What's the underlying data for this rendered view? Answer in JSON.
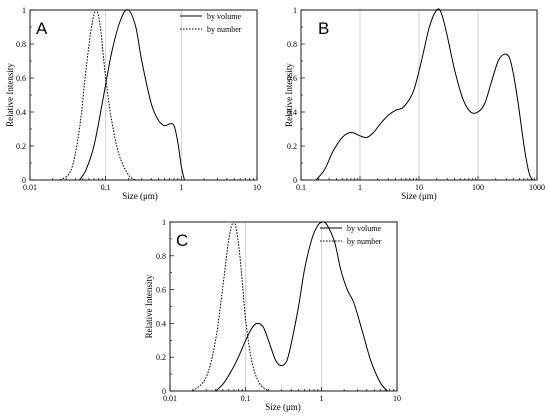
{
  "chart_data": [
    {
      "type": "line",
      "panel_label": "A",
      "xlabel": "Size (μm)",
      "ylabel": "Relative Intensity",
      "xscale": "log",
      "xlim": [
        0.01,
        10
      ],
      "ylim": [
        0,
        1
      ],
      "xticks": [
        {
          "v": 0.01,
          "label": "0.01"
        },
        {
          "v": 0.1,
          "label": "0.1"
        },
        {
          "v": 1,
          "label": "1"
        },
        {
          "v": 10,
          "label": "10"
        }
      ],
      "yticks": [
        {
          "v": 0,
          "label": "0"
        },
        {
          "v": 0.2,
          "label": "0.2"
        },
        {
          "v": 0.4,
          "label": "0.4"
        },
        {
          "v": 0.6,
          "label": "0.6"
        },
        {
          "v": 0.8,
          "label": "0.8"
        },
        {
          "v": 1,
          "label": "1"
        }
      ],
      "gridlines_x": [
        0.1,
        1
      ],
      "legend": "top-right",
      "series": [
        {
          "name": "by volume",
          "style": "solid",
          "color": "#000000",
          "x": [
            0.045,
            0.055,
            0.07,
            0.09,
            0.12,
            0.16,
            0.2,
            0.25,
            0.3,
            0.4,
            0.5,
            0.6,
            0.7,
            0.8,
            0.9,
            1.0,
            1.1
          ],
          "y": [
            0,
            0.06,
            0.2,
            0.45,
            0.75,
            0.95,
            1.0,
            0.9,
            0.7,
            0.45,
            0.35,
            0.32,
            0.33,
            0.32,
            0.22,
            0.08,
            0
          ]
        },
        {
          "name": "by number",
          "style": "dashed",
          "color": "#000000",
          "x": [
            0.025,
            0.035,
            0.045,
            0.055,
            0.065,
            0.075,
            0.085,
            0.1,
            0.12,
            0.15,
            0.2,
            0.25
          ],
          "y": [
            0,
            0.06,
            0.3,
            0.65,
            0.9,
            1.0,
            0.9,
            0.6,
            0.35,
            0.15,
            0.03,
            0
          ]
        }
      ]
    },
    {
      "type": "line",
      "panel_label": "B",
      "xlabel": "Size (μm)",
      "ylabel": "Relative Intensity",
      "xscale": "log",
      "xlim": [
        0.1,
        1000
      ],
      "ylim": [
        0,
        1
      ],
      "xticks": [
        {
          "v": 0.1,
          "label": "0.1"
        },
        {
          "v": 1,
          "label": "1"
        },
        {
          "v": 10,
          "label": "10"
        },
        {
          "v": 100,
          "label": "100"
        },
        {
          "v": 1000,
          "label": "1000"
        }
      ],
      "yticks": [
        {
          "v": 0,
          "label": "0"
        },
        {
          "v": 0.2,
          "label": "0.2"
        },
        {
          "v": 0.4,
          "label": "0.4"
        },
        {
          "v": 0.6,
          "label": "0.6"
        },
        {
          "v": 0.8,
          "label": "0.8"
        },
        {
          "v": 1,
          "label": "1"
        }
      ],
      "gridlines_x": [
        1,
        10,
        100
      ],
      "legend": "none",
      "series": [
        {
          "name": "",
          "style": "solid",
          "color": "#000000",
          "x": [
            0.18,
            0.25,
            0.35,
            0.5,
            0.7,
            1.0,
            1.3,
            1.7,
            2.2,
            3,
            4,
            5.5,
            8,
            11,
            15,
            20,
            24,
            30,
            40,
            55,
            75,
            100,
            130,
            170,
            220,
            280,
            340,
            400,
            480,
            560,
            650,
            750,
            850
          ],
          "y": [
            0,
            0.06,
            0.17,
            0.25,
            0.28,
            0.26,
            0.25,
            0.28,
            0.33,
            0.38,
            0.41,
            0.43,
            0.52,
            0.7,
            0.9,
            1.0,
            0.98,
            0.85,
            0.65,
            0.48,
            0.4,
            0.4,
            0.45,
            0.58,
            0.7,
            0.74,
            0.72,
            0.62,
            0.45,
            0.28,
            0.13,
            0.03,
            0
          ]
        }
      ]
    },
    {
      "type": "line",
      "panel_label": "C",
      "xlabel": "Size (μm)",
      "ylabel": "Relative Intensity",
      "xscale": "log",
      "xlim": [
        0.01,
        10
      ],
      "ylim": [
        0,
        1
      ],
      "xticks": [
        {
          "v": 0.01,
          "label": "0.01"
        },
        {
          "v": 0.1,
          "label": "0.1"
        },
        {
          "v": 1,
          "label": "1"
        },
        {
          "v": 10,
          "label": "10"
        }
      ],
      "yticks": [
        {
          "v": 0,
          "label": "0"
        },
        {
          "v": 0.2,
          "label": "0.2"
        },
        {
          "v": 0.4,
          "label": "0.4"
        },
        {
          "v": 0.6,
          "label": "0.6"
        },
        {
          "v": 0.8,
          "label": "0.8"
        },
        {
          "v": 1,
          "label": "1"
        }
      ],
      "gridlines_x": [
        0.1,
        1
      ],
      "legend": "top-right",
      "series": [
        {
          "name": "by volume",
          "style": "solid",
          "color": "#000000",
          "x": [
            0.04,
            0.05,
            0.065,
            0.08,
            0.1,
            0.12,
            0.14,
            0.17,
            0.2,
            0.25,
            0.3,
            0.35,
            0.4,
            0.5,
            0.6,
            0.75,
            0.9,
            1.05,
            1.2,
            1.5,
            1.8,
            2.2,
            2.7,
            3.5,
            4.5,
            6,
            7.5
          ],
          "y": [
            0,
            0.04,
            0.12,
            0.2,
            0.3,
            0.37,
            0.4,
            0.38,
            0.3,
            0.18,
            0.15,
            0.18,
            0.28,
            0.5,
            0.72,
            0.9,
            0.98,
            1.0,
            0.98,
            0.88,
            0.72,
            0.6,
            0.52,
            0.35,
            0.18,
            0.05,
            0
          ]
        },
        {
          "name": "by number",
          "style": "dashed",
          "color": "#000000",
          "x": [
            0.02,
            0.03,
            0.04,
            0.05,
            0.06,
            0.07,
            0.08,
            0.09,
            0.1,
            0.12,
            0.15,
            0.2
          ],
          "y": [
            0,
            0.08,
            0.3,
            0.62,
            0.9,
            1.0,
            0.88,
            0.65,
            0.42,
            0.18,
            0.05,
            0
          ]
        }
      ]
    }
  ]
}
